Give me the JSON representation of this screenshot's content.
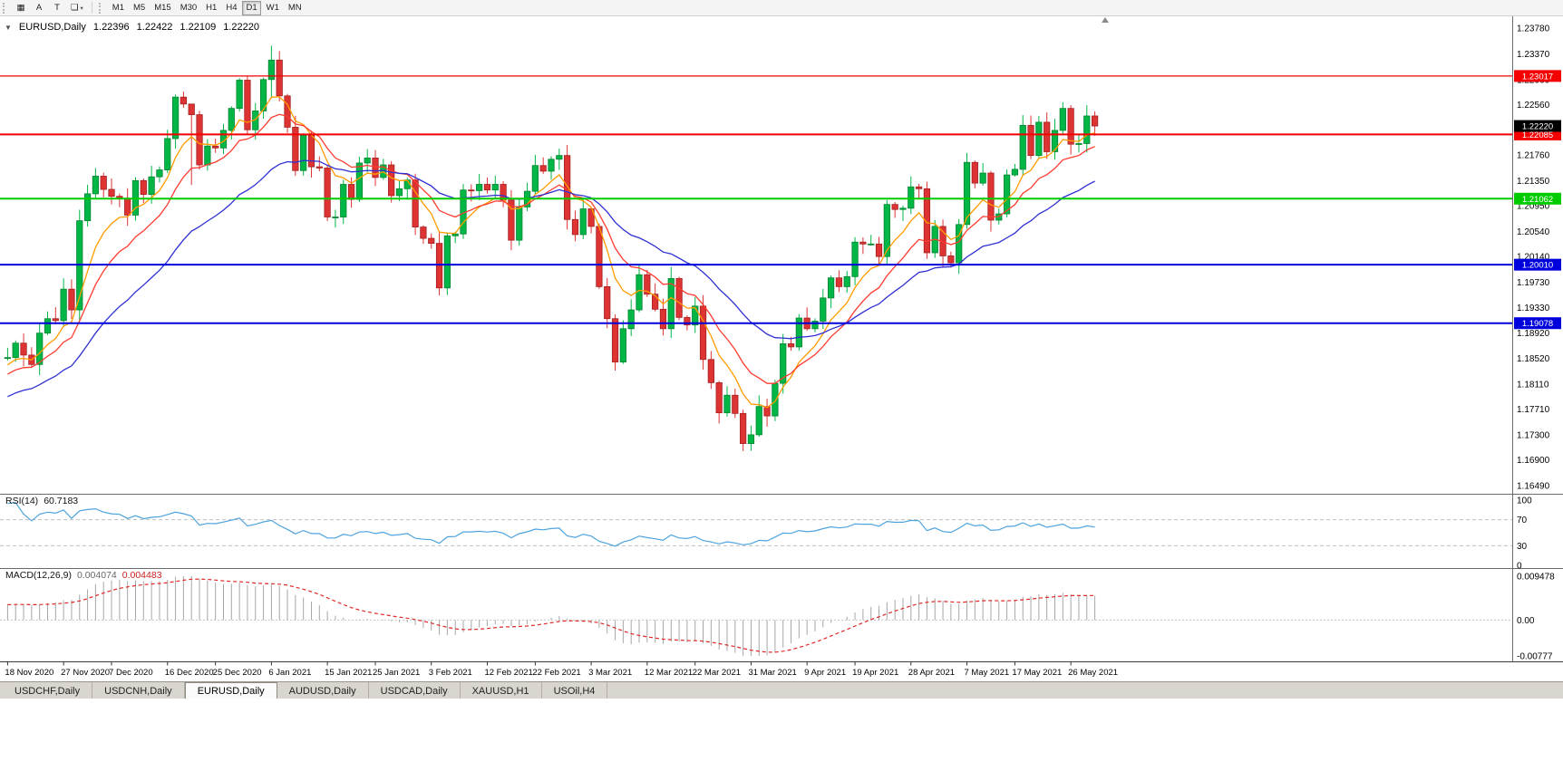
{
  "toolbar": {
    "tools": [
      {
        "name": "chart-grid",
        "glyph": "▦"
      },
      {
        "name": "text-label",
        "glyph": "A"
      },
      {
        "name": "type-tool",
        "glyph": "T"
      },
      {
        "name": "objects-menu",
        "glyph": "❏",
        "caret": "▾"
      }
    ],
    "timeframes": [
      "M1",
      "M5",
      "M15",
      "M30",
      "H1",
      "H4",
      "D1",
      "W1",
      "MN"
    ],
    "active_timeframe": "D1"
  },
  "chart_header": {
    "marker": "▼",
    "symbol": "EURUSD,Daily",
    "open": "1.22396",
    "high": "1.22422",
    "low": "1.22109",
    "close": "1.22220"
  },
  "panels": {
    "rsi": {
      "name": "RSI(14)",
      "value": "60.7183",
      "line_color": "#4da3dd",
      "levels": [
        70,
        30
      ],
      "range": [
        0,
        100
      ],
      "axis_ticks": [
        {
          "v": 100,
          "label": "100"
        },
        {
          "v": 70,
          "label": "70"
        },
        {
          "v": 30,
          "label": "30"
        },
        {
          "v": 0,
          "label": "0"
        }
      ]
    },
    "macd": {
      "name": "MACD(12,26,9)",
      "macd_value": "0.004074",
      "signal_value": "0.004483",
      "histogram_color": "#a6a6a6",
      "signal_color": "#e02828",
      "range": [
        -0.00777,
        0.009478
      ],
      "axis_ticks": [
        {
          "v": 0.009478,
          "label": "0.009478"
        },
        {
          "v": 0,
          "label": "0.00"
        },
        {
          "v": -0.00777,
          "label": "-0.00777"
        }
      ]
    }
  },
  "chart_data": {
    "type": "candlestick",
    "title": "EURUSD,Daily",
    "bull_color": "#00b646",
    "bear_color": "#dd3333",
    "bull_stroke": "#00832f",
    "bear_stroke": "#a32020",
    "y_range": [
      1.1649,
      1.2378
    ],
    "y_axis_ticks": [
      "1.23780",
      "1.23370",
      "1.22960",
      "1.22560",
      "1.21760",
      "1.21350",
      "1.20950",
      "1.20540",
      "1.20140",
      "1.19730",
      "1.19330",
      "1.18920",
      "1.18520",
      "1.18110",
      "1.17710",
      "1.17300",
      "1.16900",
      "1.16490"
    ],
    "closes": [
      1.1853,
      1.1876,
      1.1857,
      1.1842,
      1.1892,
      1.1915,
      1.1912,
      1.1962,
      1.1929,
      1.2071,
      1.2114,
      1.2142,
      1.2121,
      1.211,
      1.2107,
      1.208,
      1.2135,
      1.2113,
      1.2141,
      1.2152,
      1.2202,
      1.2268,
      1.2257,
      1.224,
      1.216,
      1.219,
      1.2187,
      1.2215,
      1.225,
      1.2295,
      1.2216,
      1.2246,
      1.2296,
      1.2327,
      1.227,
      1.222,
      1.2151,
      1.2207,
      1.2157,
      1.2155,
      1.2077,
      1.2077,
      1.2129,
      1.2105,
      1.2163,
      1.2171,
      1.214,
      1.216,
      1.2111,
      1.2122,
      1.2136,
      1.2061,
      1.2043,
      1.2035,
      1.1964,
      1.2047,
      1.205,
      1.212,
      1.2119,
      1.2129,
      1.212,
      1.2129,
      1.2104,
      1.204,
      1.2093,
      1.2118,
      1.2159,
      1.215,
      1.2169,
      1.2175,
      1.2073,
      1.2049,
      1.209,
      1.2062,
      1.1966,
      1.1915,
      1.1846,
      1.1899,
      1.1929,
      1.1985,
      1.1954,
      1.193,
      1.1899,
      1.1979,
      1.1917,
      1.1905,
      1.1935,
      1.185,
      1.1813,
      1.1765,
      1.1793,
      1.1764,
      1.1716,
      1.173,
      1.1775,
      1.176,
      1.1812,
      1.1875,
      1.187,
      1.1916,
      1.1899,
      1.1911,
      1.1948,
      1.198,
      1.1966,
      1.1982,
      1.2037,
      1.2034,
      1.2034,
      1.2014,
      1.2097,
      1.2089,
      1.2091,
      1.2125,
      1.2122,
      1.202,
      1.2062,
      1.2015,
      1.2004,
      1.2065,
      1.2164,
      1.2131,
      1.2147,
      1.2072,
      1.2082,
      1.2144,
      1.2153,
      1.2223,
      1.2175,
      1.2228,
      1.2181,
      1.2215,
      1.225,
      1.2193,
      1.2194,
      1.2238,
      1.2222
    ],
    "wick_overrides": {
      "23": [
        1.2255,
        1.2128
      ],
      "33": [
        1.235,
        1.2266
      ],
      "54": [
        1.2053,
        1.1952
      ],
      "92": [
        1.177,
        1.1704
      ]
    },
    "x_labels": [
      {
        "text": "18 Nov 2020",
        "i": 0
      },
      {
        "text": "27 Nov 2020",
        "i": 7
      },
      {
        "text": "7 Dec 2020",
        "i": 13
      },
      {
        "text": "16 Dec 2020",
        "i": 20
      },
      {
        "text": "25 Dec 2020",
        "i": 26
      },
      {
        "text": "6 Jan 2021",
        "i": 33
      },
      {
        "text": "15 Jan 2021",
        "i": 40
      },
      {
        "text": "25 Jan 2021",
        "i": 46
      },
      {
        "text": "3 Feb 2021",
        "i": 53
      },
      {
        "text": "12 Feb 2021",
        "i": 60
      },
      {
        "text": "22 Feb 2021",
        "i": 66
      },
      {
        "text": "3 Mar 2021",
        "i": 73
      },
      {
        "text": "12 Mar 2021",
        "i": 80
      },
      {
        "text": "22 Mar 2021",
        "i": 86
      },
      {
        "text": "31 Mar 2021",
        "i": 93
      },
      {
        "text": "9 Apr 2021",
        "i": 100
      },
      {
        "text": "19 Apr 2021",
        "i": 106
      },
      {
        "text": "28 Apr 2021",
        "i": 113
      },
      {
        "text": "7 May 2021",
        "i": 120
      },
      {
        "text": "17 May 2021",
        "i": 126
      },
      {
        "text": "26 May 2021",
        "i": 133
      }
    ],
    "moving_averages": [
      {
        "period": 7,
        "color": "#ff9c00"
      },
      {
        "period": 13,
        "color": "#ff3b30"
      },
      {
        "period": 28,
        "color": "#2f2fd3"
      }
    ],
    "horizontal_lines": [
      {
        "price": 1.23017,
        "label": "1.23017",
        "color": "#f40000",
        "width": 1.3
      },
      {
        "price": 1.22085,
        "label": "1.22085",
        "color": "#f40000",
        "width": 2
      },
      {
        "price": 1.21062,
        "label": "1.21062",
        "color": "#00cc00",
        "width": 2
      },
      {
        "price": 1.2001,
        "label": "1.20010",
        "color": "#0000dd",
        "width": 2
      },
      {
        "price": 1.19078,
        "label": "1.19078",
        "color": "#0000dd",
        "width": 2
      }
    ],
    "current_price": {
      "value": 1.2222,
      "label": "1.22220",
      "badge_color": "#000000"
    },
    "rsi_period": 14,
    "macd_params": [
      12,
      26,
      9
    ]
  },
  "tabs": {
    "items": [
      {
        "label": "USDCHF,Daily",
        "active": false
      },
      {
        "label": "USDCNH,Daily",
        "active": false
      },
      {
        "label": "EURUSD,Daily",
        "active": true
      },
      {
        "label": "AUDUSD,Daily",
        "active": false
      },
      {
        "label": "USDCAD,Daily",
        "active": false
      },
      {
        "label": "XAUUSD,H1",
        "active": false
      },
      {
        "label": "USOil,H4",
        "active": false
      }
    ]
  }
}
